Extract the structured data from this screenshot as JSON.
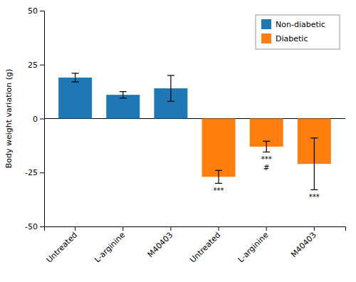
{
  "chart_data": {
    "type": "bar",
    "categories": [
      "Untreated",
      "L-arginine",
      "M40403",
      "Untreated",
      "L-arginine",
      "M40403"
    ],
    "series": [
      {
        "name": "Non-diabetic",
        "values": [
          19,
          11,
          14,
          null,
          null,
          null
        ],
        "errors": [
          2,
          1.5,
          6,
          null,
          null,
          null
        ]
      },
      {
        "name": "Diabetic",
        "values": [
          null,
          null,
          null,
          -27,
          -13,
          -21
        ],
        "errors": [
          null,
          null,
          null,
          3,
          2.5,
          12
        ],
        "annotations": [
          null,
          null,
          null,
          [
            "***"
          ],
          [
            "***",
            "#"
          ],
          [
            "***"
          ]
        ]
      }
    ],
    "ylabel": "Body weight variation (g)",
    "ylim": [
      -50,
      50
    ],
    "yticks": [
      -50,
      -25,
      0,
      25,
      50
    ],
    "grid": false,
    "legend": "upper right"
  }
}
